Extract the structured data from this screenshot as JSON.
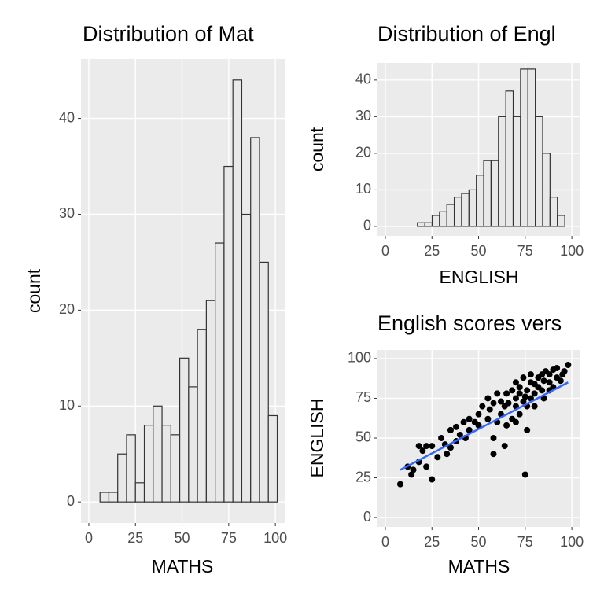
{
  "chart_data": [
    {
      "type": "histogram",
      "title": "Distribution of Mat",
      "x_label": "MATHS",
      "y_label": "count",
      "bins": [
        6,
        10.75,
        15.5,
        20.25,
        25,
        29.75,
        34.5,
        39.25,
        44,
        48.75,
        53.5,
        58.25,
        63,
        67.75,
        72.5,
        77.25,
        82,
        86.75,
        91.5,
        96.25,
        101
      ],
      "values": [
        1,
        1,
        5,
        7,
        2,
        8,
        10,
        8,
        7,
        15,
        12,
        18,
        21,
        27,
        35,
        44,
        30,
        38,
        25,
        9
      ],
      "fill": "#e8e8e8",
      "color": "#333333",
      "xlim": [
        -4.2,
        105
      ],
      "ylim": [
        -2.2,
        46.2
      ],
      "xticks": [
        0,
        25,
        50,
        75,
        100
      ],
      "yticks": [
        0,
        10,
        20,
        30,
        40
      ],
      "grid": true
    },
    {
      "type": "histogram",
      "title": "Distribution of Engl",
      "x_label": "ENGLISH",
      "y_label": "count",
      "bins": [
        17.2,
        21.15,
        25.1,
        29.05,
        33,
        36.95,
        40.9,
        44.85,
        48.8,
        52.75,
        56.7,
        60.65,
        64.6,
        68.55,
        72.5,
        76.45,
        80.4,
        84.35,
        88.3,
        92.25,
        96.2
      ],
      "values": [
        1,
        1,
        3,
        4,
        6,
        8,
        9,
        10,
        14,
        18,
        18,
        30,
        37,
        30,
        43,
        43,
        30,
        20,
        8,
        3
      ],
      "fill": "#e8e8e8",
      "color": "#333333",
      "xlim": [
        -4.2,
        104.6
      ],
      "ylim": [
        -2.6,
        44.7
      ],
      "xticks": [
        0,
        25,
        50,
        75,
        100
      ],
      "yticks": [
        0,
        10,
        20,
        30,
        40
      ],
      "grid": true
    },
    {
      "type": "scatter",
      "title": "English scores vers",
      "x_label": "MATHS",
      "y_label": "ENGLISH",
      "x": [
        8,
        12,
        14,
        15,
        18,
        18,
        20,
        22,
        22,
        25,
        25,
        28,
        30,
        32,
        33,
        35,
        35,
        38,
        38,
        40,
        42,
        43,
        45,
        45,
        48,
        50,
        50,
        52,
        55,
        55,
        56,
        58,
        58,
        60,
        60,
        62,
        62,
        64,
        65,
        65,
        66,
        68,
        68,
        70,
        70,
        70,
        72,
        72,
        72,
        74,
        74,
        75,
        75,
        76,
        76,
        78,
        78,
        78,
        80,
        80,
        80,
        82,
        82,
        84,
        84,
        85,
        85,
        86,
        88,
        88,
        88,
        90,
        90,
        92,
        92,
        94,
        95,
        96,
        98,
        76,
        64,
        58,
        70
      ],
      "values": [
        21,
        32,
        27,
        30,
        45,
        35,
        42,
        32,
        45,
        24,
        45,
        38,
        50,
        46,
        40,
        55,
        44,
        48,
        57,
        52,
        60,
        50,
        55,
        62,
        60,
        58,
        65,
        70,
        62,
        75,
        68,
        40,
        72,
        60,
        78,
        65,
        73,
        70,
        58,
        78,
        72,
        62,
        80,
        70,
        75,
        85,
        65,
        78,
        82,
        73,
        88,
        76,
        27,
        80,
        70,
        85,
        75,
        90,
        78,
        84,
        70,
        82,
        88,
        80,
        90,
        75,
        86,
        92,
        85,
        80,
        90,
        82,
        93,
        88,
        94,
        86,
        90,
        92,
        96,
        55,
        45,
        50,
        60
      ],
      "color": "#000000",
      "fit": {
        "x": [
          8,
          98
        ],
        "values": [
          30,
          85
        ],
        "color": "#3366ff"
      },
      "xlim": [
        -4.2,
        104.6
      ],
      "ylim": [
        -5.9,
        105.4
      ],
      "xticks": [
        0,
        25,
        50,
        75,
        100
      ],
      "yticks": [
        0,
        25,
        50,
        75,
        100
      ],
      "grid": true
    }
  ]
}
